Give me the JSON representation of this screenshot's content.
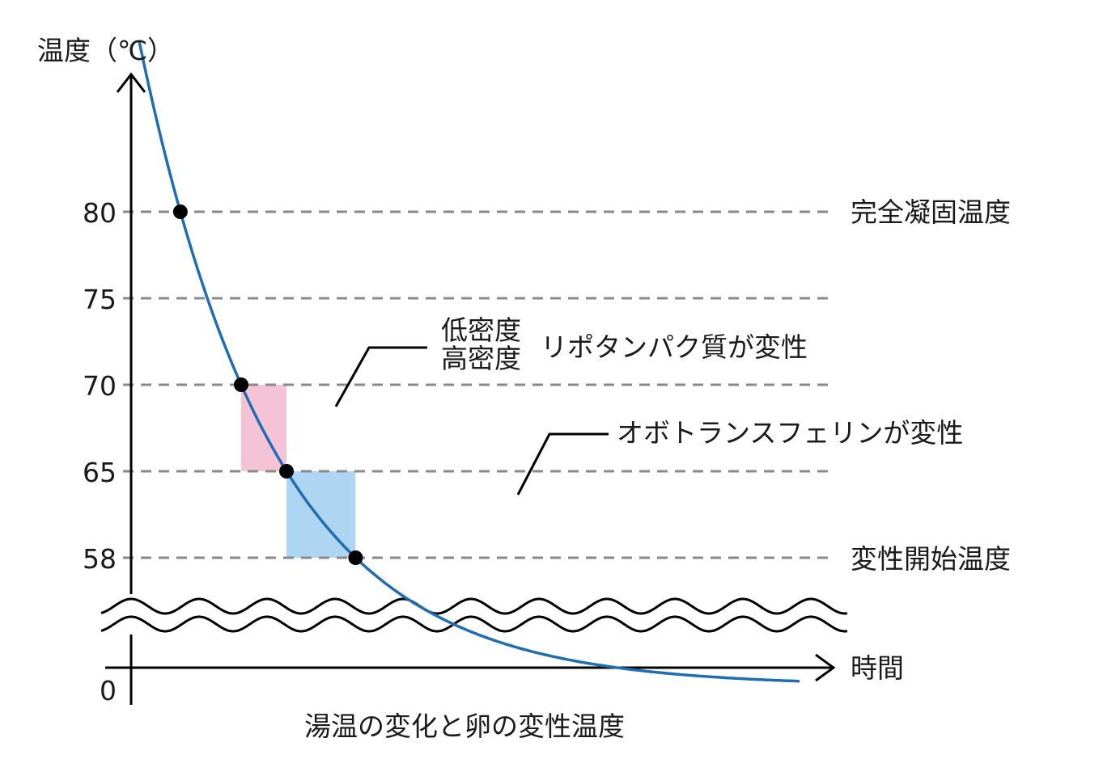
{
  "title": "湯温の変化と卵の変性温度",
  "y_axis_label": "温度（℃）",
  "x_axis_label": "時間",
  "origin_label": "0",
  "annotations": {
    "complete_coagulation": "完全凝固温度",
    "denaturation_start": "変性開始温度",
    "lipoprotein_line1": "低密度",
    "lipoprotein_line2": "高密度",
    "lipoprotein_suffix": "リポタンパク質が変性",
    "ovotransferrin": "オボトランスフェリンが変性"
  },
  "colors": {
    "curve": "#1f6db3",
    "lipoprotein_band": "#f5c3d6",
    "ovotransferrin_band": "#aed6f2",
    "reference_lines": "#8a8a8a",
    "points": "#000000"
  },
  "chart_data": {
    "type": "line",
    "title": "湯温の変化と卵の変性温度",
    "xlabel": "時間",
    "ylabel": "温度（℃）",
    "y_ticks": [
      80,
      75,
      70,
      65,
      58
    ],
    "y_axis_broken": true,
    "series": [
      {
        "points_y": [
          80,
          70,
          65,
          58
        ]
      }
    ],
    "reference_lines": [
      80,
      75,
      70,
      65,
      58
    ],
    "bands": [
      {
        "label": "低密度/高密度リポタンパク質が変性",
        "y_range": [
          65,
          70
        ]
      },
      {
        "label": "オボトランスフェリンが変性",
        "y_range": [
          58,
          65
        ]
      }
    ],
    "grid": "dashed horizontal reference lines"
  }
}
